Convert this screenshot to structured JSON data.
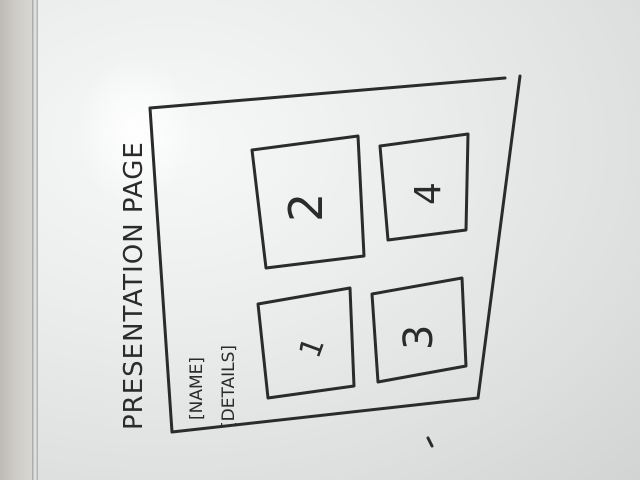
{
  "whiteboard": {
    "title": "PRESENTATION PAGE",
    "name_field": "[NAME]",
    "details_field": "[DETAILS]",
    "tiles": [
      {
        "label": "1"
      },
      {
        "label": "2"
      },
      {
        "label": "3"
      },
      {
        "label": "4"
      }
    ]
  }
}
